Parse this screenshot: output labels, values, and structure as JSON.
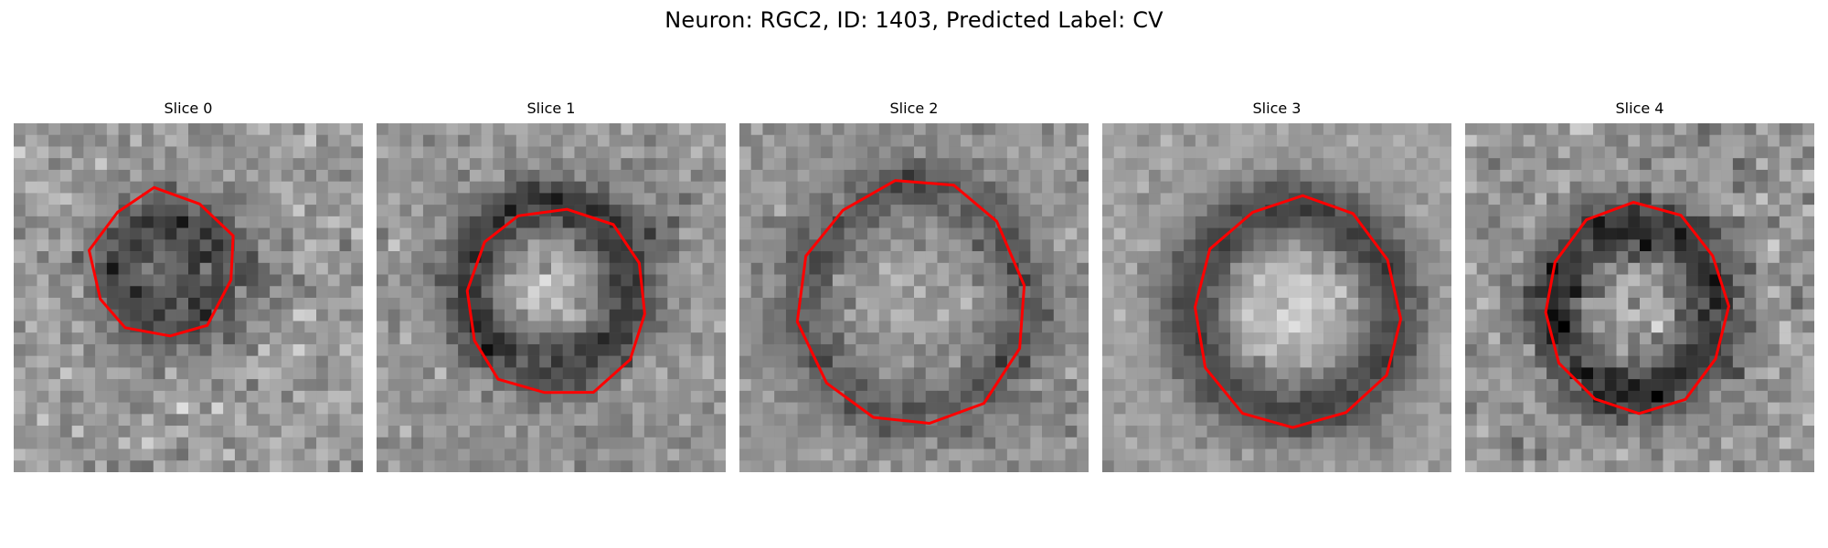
{
  "figure": {
    "title": "Neuron: RGC2, ID: 1403, Predicted Label: CV",
    "panels": [
      {
        "title": "Slice 0"
      },
      {
        "title": "Slice 1"
      },
      {
        "title": "Slice 2"
      },
      {
        "title": "Slice 3"
      },
      {
        "title": "Slice 4"
      }
    ]
  },
  "style": {
    "contour_color": "#ff0000",
    "background_color": "#ffffff"
  }
}
